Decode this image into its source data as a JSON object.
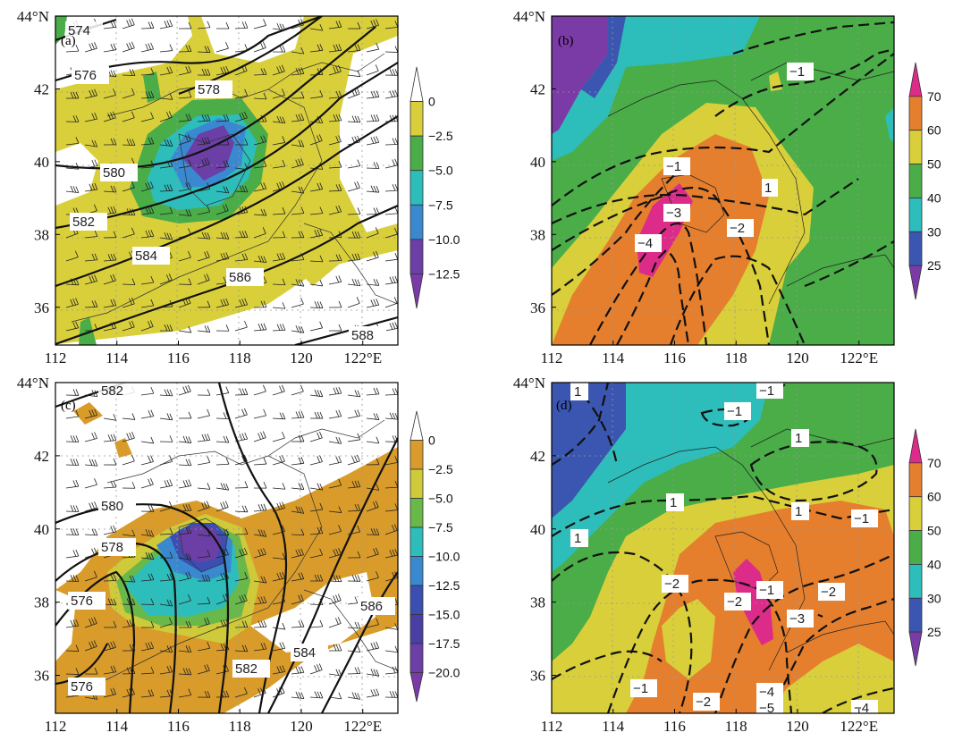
{
  "x_ticks": [
    "112",
    "114",
    "116",
    "118",
    "120",
    "122°E"
  ],
  "y_ticks": [
    "44°N",
    "42",
    "40",
    "38",
    "36"
  ],
  "panels": [
    {
      "label": "(a)",
      "fills": [
        "#d9cf3a",
        "#4aad48",
        "#2dbdbb",
        "#3a88cf",
        "#6b3fa5"
      ],
      "contour_labels": [
        "574",
        "576",
        "578",
        "580",
        "582",
        "584",
        "586",
        "588"
      ],
      "colorbar": {
        "labels": [
          "0",
          "−2.5",
          "−5.0",
          "−7.5",
          "−10.0",
          "−12.5"
        ],
        "colors": [
          "#ffffff",
          "#d9cf3a",
          "#4aad48",
          "#2dbdbb",
          "#3a88cf",
          "#6b3fa5",
          "#7a3aa8"
        ]
      }
    },
    {
      "label": "(b)",
      "fills": [
        "#7b3ba6",
        "#3a56b0",
        "#2dbdbb",
        "#4aad48",
        "#d9cf3a",
        "#e57f2e",
        "#dd2b8a"
      ],
      "contour_labels": [
        "−1",
        "−1",
        "1",
        "−3",
        "−4",
        "−2"
      ],
      "colorbar": {
        "labels": [
          "70",
          "60",
          "50",
          "40",
          "30",
          "25"
        ],
        "colors": [
          "#dd2b8a",
          "#e57f2e",
          "#d9cf3a",
          "#4aad48",
          "#2dbdbb",
          "#3a56b0",
          "#7b3ba6"
        ]
      }
    },
    {
      "label": "(c)",
      "fills": [
        "#d99c2a",
        "#cfca3a",
        "#69b84a",
        "#2dbdbb",
        "#3a88cf",
        "#3a4fb0",
        "#6b3fa5"
      ],
      "contour_labels": [
        "582",
        "580",
        "578",
        "576",
        "576",
        "582",
        "584",
        "586"
      ],
      "colorbar": {
        "labels": [
          "0",
          "−2.5",
          "−5.0",
          "−7.5",
          "−10.0",
          "−12.5",
          "−15.0",
          "−17.5",
          "−20.0"
        ],
        "colors": [
          "#ffffff",
          "#d99c2a",
          "#cfca3a",
          "#69b84a",
          "#2dbdbb",
          "#3a88cf",
          "#3a4fb0",
          "#4a3fa5",
          "#6b3fa5",
          "#7a3aa8"
        ]
      }
    },
    {
      "label": "(d)",
      "fills": [
        "#3a56b0",
        "#2dbdbb",
        "#4aad48",
        "#d9cf3a",
        "#e57f2e",
        "#dd2b8a"
      ],
      "contour_labels": [
        "1",
        "−1",
        "−1",
        "1",
        "1",
        "1",
        "−1",
        "1",
        "−2",
        "−2",
        "−1",
        "−2",
        "−3",
        "−1",
        "−2",
        "−4",
        "−5",
        "−4"
      ],
      "colorbar": {
        "labels": [
          "70",
          "60",
          "50",
          "40",
          "30",
          "25"
        ],
        "colors": [
          "#dd2b8a",
          "#e57f2e",
          "#d9cf3a",
          "#4aad48",
          "#2dbdbb",
          "#3a56b0",
          "#7b3ba6"
        ]
      }
    }
  ]
}
